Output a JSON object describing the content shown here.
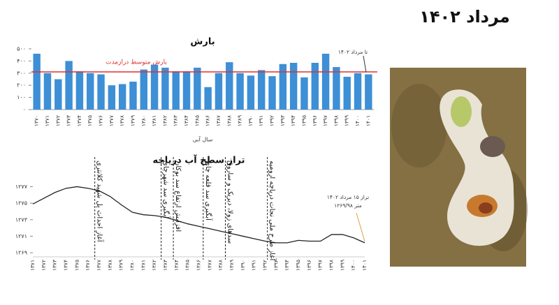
{
  "title": "مرداد ۱۴۰۲",
  "chart_data": [
    {
      "type": "bar",
      "title": "بارش",
      "x_label": "سال آبی",
      "color": "#3d8fd6",
      "categories": [
        "۱۳۷۰",
        "۱۳۷۱",
        "۱۳۷۲",
        "۱۳۷۳",
        "۱۳۷۴",
        "۱۳۷۵",
        "۱۳۷۶",
        "۱۳۷۷",
        "۱۳۷۸",
        "۱۳۷۹",
        "۱۳۸۰",
        "۱۳۸۱",
        "۱۳۸۲",
        "۱۳۸۳",
        "۱۳۸۴",
        "۱۳۸۵",
        "۱۳۸۶",
        "۱۳۸۷",
        "۱۳۸۸",
        "۱۳۸۹",
        "۱۳۹۰",
        "۱۳۹۱",
        "۱۳۹۲",
        "۱۳۹۳",
        "۱۳۹۴",
        "۱۳۹۵",
        "۱۳۹۶",
        "۱۳۹۷",
        "۱۳۹۸",
        "۱۳۹۹",
        "۱۴۰۰",
        "۱۴۰۱"
      ],
      "values": [
        460,
        300,
        250,
        400,
        315,
        300,
        290,
        200,
        210,
        230,
        330,
        370,
        345,
        315,
        315,
        345,
        185,
        300,
        390,
        300,
        280,
        325,
        275,
        375,
        385,
        265,
        385,
        460,
        350,
        270,
        300,
        290
      ],
      "ylim": [
        0,
        500
      ],
      "yticks": [
        {
          "value": 0,
          "label": "۰"
        },
        {
          "value": 100,
          "label": "۱۰۰"
        },
        {
          "value": 200,
          "label": "۲۰۰"
        },
        {
          "value": 300,
          "label": "۳۰۰"
        },
        {
          "value": 400,
          "label": "۴۰۰"
        },
        {
          "value": 500,
          "label": "۵۰۰"
        }
      ],
      "reference": {
        "label": "بارش متوسط درازمدت",
        "value": 310,
        "color": "#e03030"
      },
      "annotations": [
        "تا مرداد ۱۴۰۲"
      ]
    },
    {
      "type": "line",
      "title": "تراز سطح آب دریاچه",
      "color": "#222222",
      "categories": [
        "۱۳۷۱",
        "۱۳۷۲",
        "۱۳۷۳",
        "۱۳۷۴",
        "۱۳۷۵",
        "۱۳۷۶",
        "۱۳۷۷",
        "۱۳۷۸",
        "۱۳۷۹",
        "۱۳۸۰",
        "۱۳۸۱",
        "۱۳۸۲",
        "۱۳۸۳",
        "۱۳۸۴",
        "۱۳۸۵",
        "۱۳۸۶",
        "۱۳۸۷",
        "۱۳۸۸",
        "۱۳۸۹",
        "۱۳۹۰",
        "۱۳۹۱",
        "۱۳۹۲",
        "۱۳۹۳",
        "۱۳۹۴",
        "۱۳۹۵",
        "۱۳۹۶",
        "۱۳۹۷",
        "۱۳۹۸",
        "۱۳۹۹",
        "۱۴۰۰",
        "۱۴۰۱"
      ],
      "values": [
        1274.9,
        1275.6,
        1276.3,
        1276.8,
        1277.0,
        1276.8,
        1276.5,
        1275.8,
        1274.8,
        1273.9,
        1273.6,
        1273.5,
        1273.3,
        1272.9,
        1272.5,
        1272.2,
        1271.9,
        1271.6,
        1271.3,
        1271.0,
        1270.7,
        1270.4,
        1270.2,
        1270.2,
        1270.5,
        1270.4,
        1270.4,
        1271.2,
        1271.2,
        1270.8,
        1270.2
      ],
      "ylim": [
        1268.5,
        1277.8
      ],
      "yticks": [
        {
          "value": 1269,
          "label": "۱۲۶۹"
        },
        {
          "value": 1271,
          "label": "۱۲۷۱"
        },
        {
          "value": 1273,
          "label": "۱۲۷۳"
        },
        {
          "value": 1275,
          "label": "۱۲۷۵"
        },
        {
          "value": 1277,
          "label": "۱۲۷۷"
        }
      ],
      "annotations": [
        "آغاز احداث پل شهید کلانتری",
        "آبگیری سد شهرچای",
        "افزایش ارتفاع سد بوکان",
        "آبگیری سد قلعه چای",
        "سدهای زولا، دیریک و ساروق",
        "آغاز طرح ملی نجات دریاچه ارومیه",
        "تراز ۱۵ مرداد ۱۴۰۲",
        "۱۲۶۹/۹۸ متر"
      ]
    }
  ]
}
